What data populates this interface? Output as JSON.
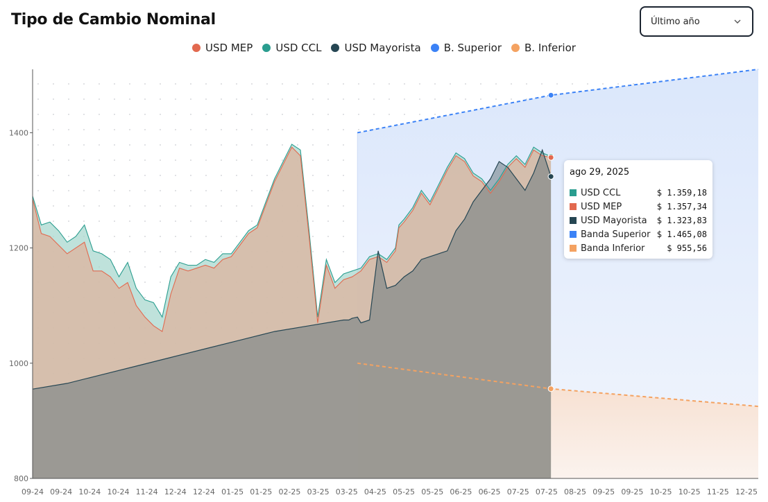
{
  "title": "Tipo de Cambio Nominal",
  "period_select": {
    "value": "Último año",
    "icon": "chevron-down-icon"
  },
  "legend": [
    {
      "label": "USD MEP",
      "color": "#e2694f"
    },
    {
      "label": "USD CCL",
      "color": "#2a9d8f"
    },
    {
      "label": "USD Mayorista",
      "color": "#264653"
    },
    {
      "label": "B. Superior",
      "color": "#3b82f6"
    },
    {
      "label": "B. Inferior",
      "color": "#f4a261"
    }
  ],
  "tooltip": {
    "date": "ago 29, 2025",
    "rows": [
      {
        "name": "USD CCL",
        "value": "$ 1.359,18",
        "color": "#2a9d8f"
      },
      {
        "name": "USD MEP",
        "value": "$ 1.357,34",
        "color": "#e2694f"
      },
      {
        "name": "USD Mayorista",
        "value": "$ 1.323,83",
        "color": "#264653"
      },
      {
        "name": "Banda Superior",
        "value": "$ 1.465,08",
        "color": "#3b82f6"
      },
      {
        "name": "Banda Inferior",
        "value": "$ 955,56",
        "color": "#f4a261"
      }
    ]
  },
  "chart_data": {
    "type": "area",
    "x_tick_labels": [
      "09-24",
      "09-24",
      "10-24",
      "10-24",
      "11-24",
      "12-24",
      "12-24",
      "01-25",
      "01-25",
      "02-25",
      "03-25",
      "03-25",
      "04-25",
      "05-25",
      "05-25",
      "06-25",
      "06-25",
      "07-25",
      "07-25",
      "08-25",
      "09-25",
      "09-25",
      "10-25",
      "10-25",
      "11-25",
      "12-25"
    ],
    "y_ticks": [
      800,
      1000,
      1200,
      1400
    ],
    "ylim": [
      800,
      1510
    ],
    "x_range_days": [
      0,
      420
    ],
    "grid": "dotted",
    "series": [
      {
        "name": "USD CCL",
        "color": "#2a9d8f",
        "x": [
          0,
          5,
          10,
          15,
          20,
          25,
          30,
          35,
          40,
          45,
          50,
          55,
          60,
          65,
          70,
          75,
          80,
          85,
          90,
          95,
          100,
          105,
          110,
          115,
          120,
          125,
          130,
          135,
          140,
          145,
          150,
          155,
          160,
          165,
          170,
          175,
          180,
          185,
          190,
          195,
          200,
          205,
          210,
          212,
          215,
          220,
          225,
          230,
          235,
          240,
          245,
          250,
          255,
          260,
          265,
          270,
          275,
          280,
          285,
          290,
          295,
          300
        ],
        "y": [
          1290,
          1240,
          1245,
          1230,
          1210,
          1220,
          1240,
          1195,
          1190,
          1180,
          1150,
          1175,
          1130,
          1110,
          1105,
          1080,
          1150,
          1175,
          1170,
          1170,
          1180,
          1175,
          1190,
          1190,
          1210,
          1230,
          1240,
          1280,
          1320,
          1350,
          1380,
          1370,
          1230,
          1080,
          1180,
          1140,
          1155,
          1160,
          1165,
          1185,
          1190,
          1180,
          1200,
          1240,
          1250,
          1270,
          1300,
          1280,
          1310,
          1340,
          1365,
          1355,
          1330,
          1320,
          1300,
          1320,
          1345,
          1360,
          1345,
          1375,
          1365,
          1359
        ]
      },
      {
        "name": "USD MEP",
        "color": "#e2694f",
        "x": [
          0,
          5,
          10,
          15,
          20,
          25,
          30,
          35,
          40,
          45,
          50,
          55,
          60,
          65,
          70,
          75,
          80,
          85,
          90,
          95,
          100,
          105,
          110,
          115,
          120,
          125,
          130,
          135,
          140,
          145,
          150,
          155,
          160,
          165,
          170,
          175,
          180,
          185,
          190,
          195,
          200,
          205,
          210,
          212,
          215,
          220,
          225,
          230,
          235,
          240,
          245,
          250,
          255,
          260,
          265,
          270,
          275,
          280,
          285,
          290,
          295,
          300
        ],
        "y": [
          1285,
          1225,
          1220,
          1205,
          1190,
          1200,
          1210,
          1160,
          1160,
          1150,
          1130,
          1140,
          1100,
          1080,
          1065,
          1055,
          1120,
          1165,
          1160,
          1165,
          1170,
          1165,
          1180,
          1185,
          1205,
          1225,
          1235,
          1275,
          1315,
          1345,
          1375,
          1360,
          1220,
          1070,
          1170,
          1130,
          1145,
          1150,
          1160,
          1180,
          1185,
          1175,
          1195,
          1235,
          1245,
          1265,
          1295,
          1275,
          1305,
          1335,
          1360,
          1350,
          1325,
          1315,
          1295,
          1315,
          1340,
          1355,
          1340,
          1370,
          1360,
          1357
        ]
      },
      {
        "name": "USD Mayorista",
        "color": "#264653",
        "x": [
          0,
          20,
          40,
          60,
          80,
          100,
          120,
          140,
          160,
          180,
          183,
          185,
          188,
          190,
          195,
          200,
          205,
          210,
          215,
          220,
          225,
          230,
          235,
          240,
          245,
          250,
          255,
          260,
          265,
          270,
          275,
          280,
          285,
          290,
          295,
          300
        ],
        "y": [
          955,
          965,
          980,
          995,
          1010,
          1025,
          1040,
          1055,
          1065,
          1075,
          1075,
          1078,
          1080,
          1070,
          1075,
          1195,
          1130,
          1135,
          1150,
          1160,
          1180,
          1185,
          1190,
          1195,
          1230,
          1250,
          1280,
          1300,
          1320,
          1350,
          1340,
          1320,
          1300,
          1330,
          1370,
          1324
        ]
      },
      {
        "name": "B. Superior",
        "color": "#3b82f6",
        "x": [
          188,
          300,
          420
        ],
        "y": [
          1400,
          1465.08,
          1510
        ]
      },
      {
        "name": "B. Inferior",
        "color": "#f4a261",
        "x": [
          188,
          300,
          420
        ],
        "y": [
          1000,
          955.56,
          925
        ]
      }
    ],
    "highlight_x": 300
  }
}
